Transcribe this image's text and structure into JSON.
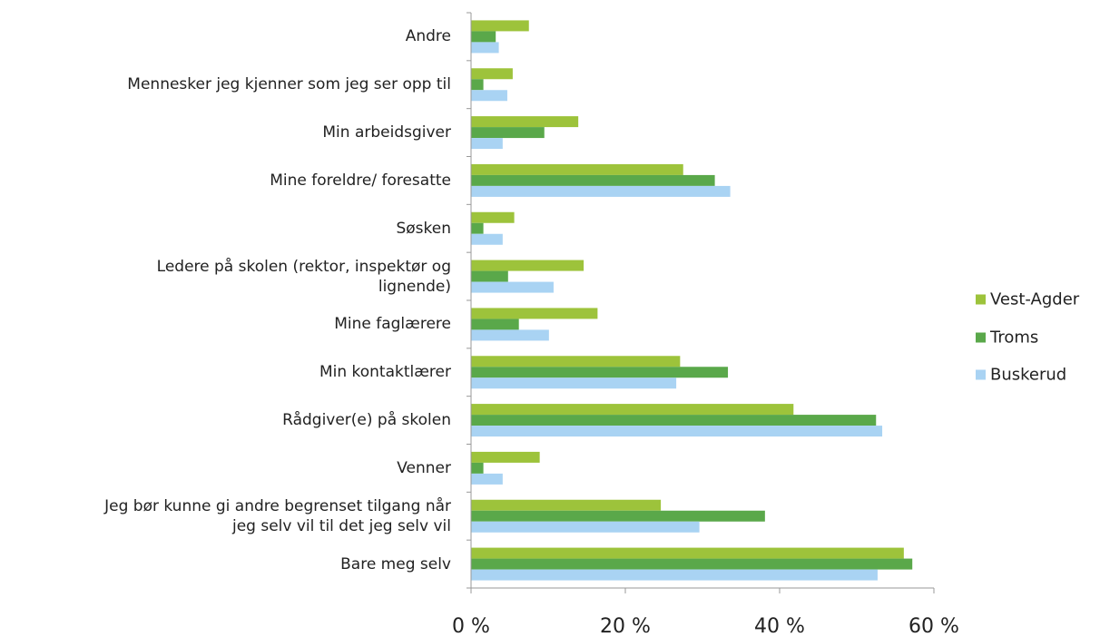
{
  "chart_data": {
    "type": "bar",
    "orientation": "horizontal",
    "categories": [
      "Andre",
      "Mennesker jeg kjenner som jeg ser opp til",
      "Min arbeidsgiver",
      "Mine foreldre/ foresatte",
      "Søsken",
      "Ledere på skolen (rektor, inspektør og\nlignende)",
      "Mine faglærere",
      "Min kontaktlærer",
      "Rådgiver(e) på skolen",
      "Venner",
      "Jeg bør kunne gi andre begrenset tilgang når\njeg selv vil til det jeg selv vil",
      "Bare meg selv"
    ],
    "series": [
      {
        "name": "Vest-Agder",
        "color": "#9dc33b",
        "values": [
          7.5,
          5.4,
          13.9,
          27.5,
          5.6,
          14.6,
          16.4,
          27.1,
          41.8,
          8.9,
          24.6,
          56.1
        ]
      },
      {
        "name": "Troms",
        "color": "#5aa84a",
        "values": [
          3.2,
          1.6,
          9.5,
          31.6,
          1.6,
          4.8,
          6.2,
          33.3,
          52.5,
          1.6,
          38.1,
          57.2
        ]
      },
      {
        "name": "Buskerud",
        "color": "#a9d3f3",
        "values": [
          3.6,
          4.7,
          4.1,
          33.6,
          4.1,
          10.7,
          10.1,
          26.6,
          53.3,
          4.1,
          29.6,
          52.7
        ]
      }
    ],
    "xlim": [
      0,
      60
    ],
    "xticks": [
      {
        "value": 0,
        "label": "0 %"
      },
      {
        "value": 20,
        "label": "20 %"
      },
      {
        "value": 40,
        "label": "40 %"
      },
      {
        "value": 60,
        "label": "60 %"
      }
    ],
    "legend": "right"
  }
}
